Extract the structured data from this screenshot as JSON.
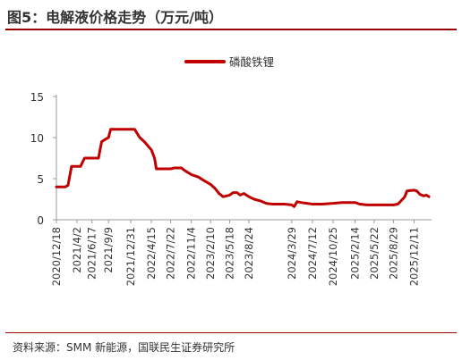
{
  "figure": {
    "title": "图5：电解液价格走势（万元/吨）",
    "source": "资料来源：SMM 新能源，国联民生证券研究所"
  },
  "colors": {
    "series": "#c00000",
    "rule": "#9a0000",
    "axis": "#999999"
  },
  "chart_data": {
    "type": "line",
    "title": "图5：电解液价格走势（万元/吨）",
    "xlabel": "",
    "ylabel": "",
    "ylim": [
      0,
      15
    ],
    "yticks": [
      0,
      5,
      10,
      15
    ],
    "xlim": [
      "2020-12-18",
      "2026-03-10"
    ],
    "xticks": [
      "2020/12/18",
      "2021/4/2",
      "2021/6/17",
      "2021/9/9",
      "2021/12/31",
      "2022/4/15",
      "2022/7/22",
      "2022/11/4",
      "2023/2/10",
      "2023/5/18",
      "2023/8/24",
      "2024/3/29",
      "2024/7/12",
      "2024/10/25",
      "2025/2/14",
      "2025/5/22",
      "2025/8/29",
      "2025/12/11"
    ],
    "grid": false,
    "legend": "top-center",
    "series": [
      {
        "name": "磷酸铁锂",
        "color": "#c00000",
        "points": [
          [
            "2020-12-18",
            4.0
          ],
          [
            "2021-02-01",
            4.0
          ],
          [
            "2021-02-15",
            4.2
          ],
          [
            "2021-03-05",
            6.5
          ],
          [
            "2021-04-02",
            6.5
          ],
          [
            "2021-04-20",
            6.5
          ],
          [
            "2021-05-10",
            7.5
          ],
          [
            "2021-06-17",
            7.5
          ],
          [
            "2021-07-20",
            7.5
          ],
          [
            "2021-08-05",
            9.5
          ],
          [
            "2021-08-25",
            9.8
          ],
          [
            "2021-09-09",
            10.0
          ],
          [
            "2021-09-20",
            11.0
          ],
          [
            "2021-12-31",
            11.0
          ],
          [
            "2022-01-20",
            11.0
          ],
          [
            "2022-02-15",
            10.0
          ],
          [
            "2022-03-10",
            9.5
          ],
          [
            "2022-04-15",
            8.5
          ],
          [
            "2022-05-01",
            7.5
          ],
          [
            "2022-05-10",
            6.2
          ],
          [
            "2022-07-22",
            6.2
          ],
          [
            "2022-08-10",
            6.3
          ],
          [
            "2022-09-15",
            6.3
          ],
          [
            "2022-10-01",
            6.0
          ],
          [
            "2022-11-04",
            5.5
          ],
          [
            "2022-12-10",
            5.2
          ],
          [
            "2023-01-05",
            4.8
          ],
          [
            "2023-02-10",
            4.3
          ],
          [
            "2023-03-05",
            3.8
          ],
          [
            "2023-03-25",
            3.2
          ],
          [
            "2023-04-15",
            2.8
          ],
          [
            "2023-05-18",
            3.0
          ],
          [
            "2023-06-05",
            3.3
          ],
          [
            "2023-06-25",
            3.3
          ],
          [
            "2023-07-10",
            3.0
          ],
          [
            "2023-07-30",
            3.2
          ],
          [
            "2023-08-24",
            2.8
          ],
          [
            "2023-09-20",
            2.5
          ],
          [
            "2023-10-20",
            2.3
          ],
          [
            "2023-11-20",
            2.0
          ],
          [
            "2023-12-20",
            1.9
          ],
          [
            "2024-01-20",
            1.9
          ],
          [
            "2024-02-20",
            1.9
          ],
          [
            "2024-03-29",
            1.8
          ],
          [
            "2024-04-10",
            1.6
          ],
          [
            "2024-04-25",
            2.2
          ],
          [
            "2024-05-15",
            2.1
          ],
          [
            "2024-07-12",
            1.9
          ],
          [
            "2024-08-30",
            1.9
          ],
          [
            "2024-10-25",
            2.0
          ],
          [
            "2024-12-10",
            2.1
          ],
          [
            "2025-01-20",
            2.1
          ],
          [
            "2025-02-14",
            2.1
          ],
          [
            "2025-03-10",
            1.9
          ],
          [
            "2025-04-15",
            1.8
          ],
          [
            "2025-05-22",
            1.8
          ],
          [
            "2025-07-10",
            1.8
          ],
          [
            "2025-08-29",
            1.8
          ],
          [
            "2025-09-20",
            1.9
          ],
          [
            "2025-10-10",
            2.4
          ],
          [
            "2025-10-25",
            2.8
          ],
          [
            "2025-11-05",
            3.5
          ],
          [
            "2025-12-11",
            3.6
          ],
          [
            "2025-12-25",
            3.5
          ],
          [
            "2026-01-10",
            3.1
          ],
          [
            "2026-01-28",
            2.9
          ],
          [
            "2026-02-12",
            3.0
          ],
          [
            "2026-02-25",
            2.8
          ]
        ]
      }
    ]
  }
}
